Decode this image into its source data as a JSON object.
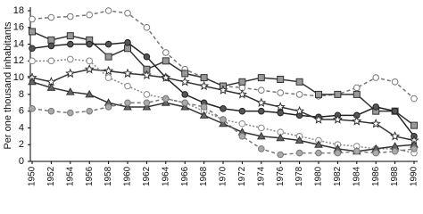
{
  "chart_data": {
    "type": "line",
    "ylabel": "Per one thousand inhabitants",
    "x": [
      1950,
      1952,
      1954,
      1956,
      1958,
      1960,
      1962,
      1964,
      1966,
      1968,
      1970,
      1972,
      1974,
      1976,
      1978,
      1980,
      1982,
      1984,
      1986,
      1988,
      1990
    ],
    "xlim": [
      1950,
      1990
    ],
    "xticks": [
      1950,
      1952,
      1954,
      1956,
      1958,
      1960,
      1962,
      1964,
      1966,
      1968,
      1970,
      1972,
      1974,
      1976,
      1978,
      1980,
      1982,
      1984,
      1986,
      1988,
      1990
    ],
    "ylim": [
      0,
      18
    ],
    "yticks": [
      0,
      2,
      4,
      6,
      8,
      10,
      12,
      14,
      16,
      18
    ],
    "series": [
      {
        "color": "#777777",
        "fill": "#ffffff",
        "marker": "circle",
        "dash": "4,3",
        "values": [
          17,
          17.2,
          17.3,
          17.5,
          18,
          17.7,
          16,
          13,
          11,
          10,
          9,
          8.8,
          8.5,
          8.2,
          8,
          7.8,
          8,
          8.8,
          10,
          9.5,
          7.5
        ]
      },
      {
        "color": "#333333",
        "fill": "#999999",
        "marker": "square",
        "dash": "",
        "values": [
          15.5,
          14.5,
          15,
          14.5,
          12.5,
          13.5,
          11,
          12,
          10.5,
          10,
          9,
          9.5,
          10,
          9.8,
          9.5,
          8,
          8,
          8,
          6,
          6,
          4.3
        ]
      },
      {
        "color": "#222222",
        "fill": "#555555",
        "marker": "circle",
        "dash": "",
        "values": [
          13.5,
          13.8,
          14,
          14,
          14,
          14.2,
          12.5,
          10,
          8,
          7,
          6.3,
          6,
          6,
          5.8,
          5.5,
          5.3,
          5.5,
          5.5,
          6.5,
          6,
          3
        ]
      },
      {
        "color": "#333333",
        "fill": "#ffffff",
        "marker": "star",
        "dash": "",
        "values": [
          10,
          9.5,
          10.5,
          11,
          10.8,
          10.5,
          10.3,
          10,
          9.5,
          9,
          8.5,
          8,
          7,
          6.5,
          6,
          5,
          5,
          4.8,
          4.5,
          3,
          2.5
        ]
      },
      {
        "color": "#888888",
        "fill": "#ffffff",
        "marker": "circle",
        "dash": "2,2",
        "values": [
          12,
          12,
          12.2,
          12,
          10,
          9,
          8,
          7.5,
          7,
          6,
          5,
          4.5,
          4,
          3.5,
          3,
          2.5,
          2,
          1.8,
          1.5,
          1.5,
          1
        ]
      },
      {
        "color": "#333333",
        "fill": "#666666",
        "marker": "triangle",
        "dash": "",
        "values": [
          9.5,
          8.8,
          8.3,
          8,
          7,
          6.5,
          6.5,
          7,
          6.5,
          5.5,
          4.5,
          3.5,
          3,
          2.8,
          2.5,
          2,
          1.5,
          1.2,
          1.5,
          1.8,
          2
        ]
      },
      {
        "color": "#777777",
        "fill": "#aaaaaa",
        "marker": "circle",
        "dash": "4,3",
        "values": [
          6.3,
          6,
          5.8,
          6,
          6.5,
          7,
          7,
          7.5,
          7,
          6.5,
          5,
          3,
          1.5,
          0.8,
          1,
          1,
          1,
          1.2,
          1,
          1.2,
          1.5
        ]
      }
    ]
  }
}
